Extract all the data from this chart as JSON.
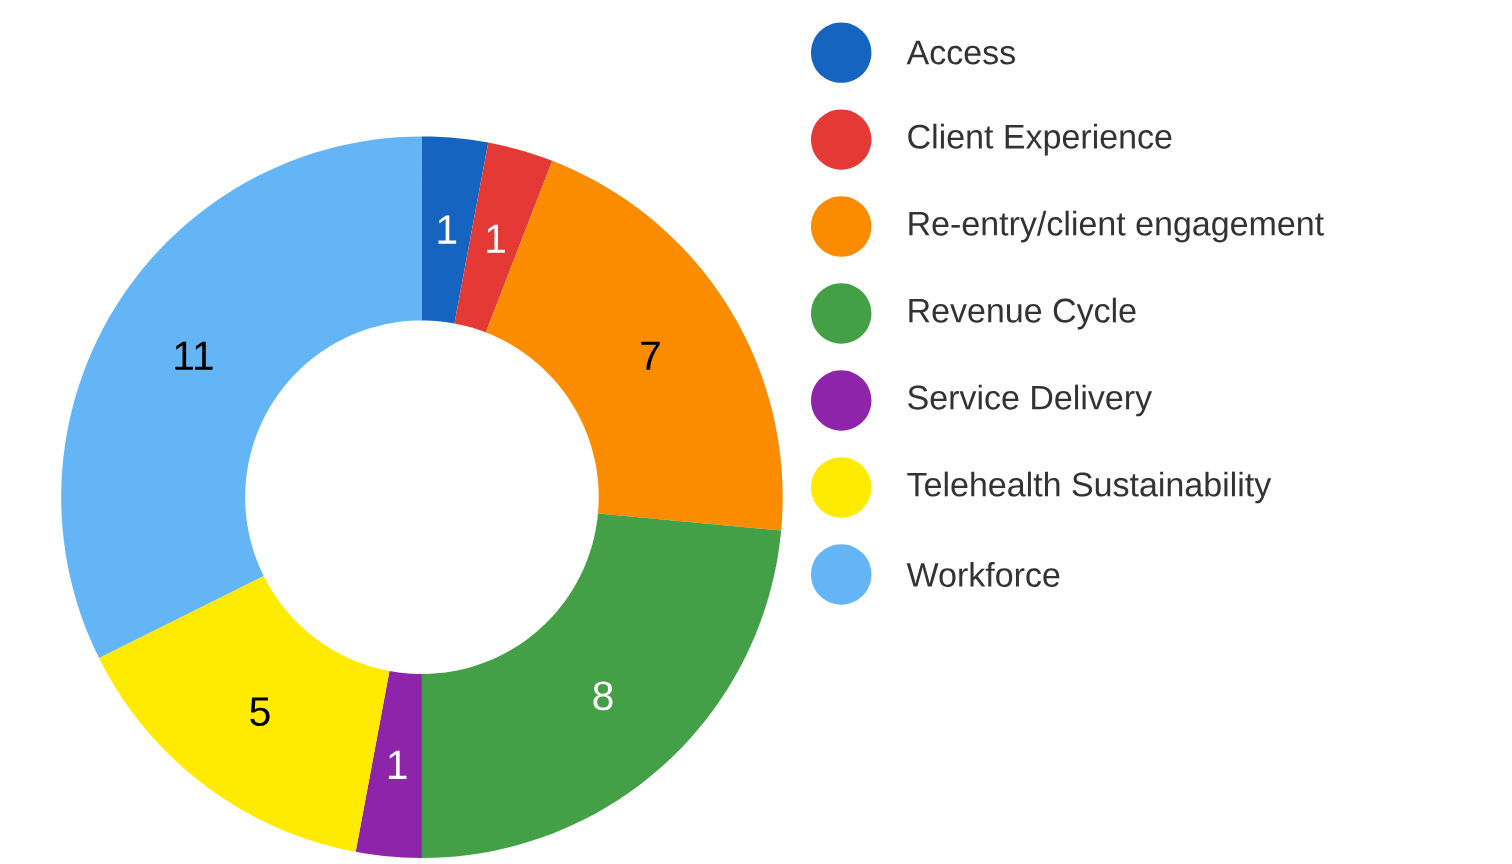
{
  "chart_data": {
    "type": "donut",
    "categories": [
      "Access",
      "Client Experience",
      "Re-entry/client engagement",
      "Revenue Cycle",
      "Service Delivery",
      "Telehealth Sustainability",
      "Workforce"
    ],
    "values": [
      1,
      1,
      7,
      8,
      1,
      5,
      11
    ],
    "colors": [
      "#1565c0",
      "#e53935",
      "#fb8c00",
      "#43a047",
      "#8e24aa",
      "#ffeb00",
      "#64b5f6"
    ],
    "data_labels": true,
    "legend": "right"
  }
}
